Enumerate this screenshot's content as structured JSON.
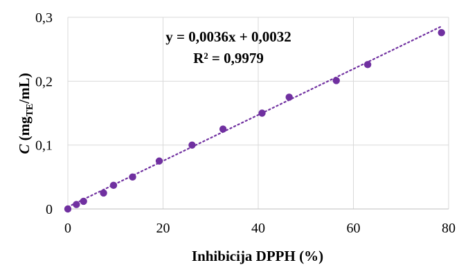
{
  "chart_data": {
    "type": "scatter",
    "x": [
      0,
      1.8,
      3.3,
      7.5,
      9.6,
      13.6,
      19.2,
      26.1,
      32.6,
      40.8,
      46.5,
      56.4,
      63.0,
      78.5
    ],
    "y": [
      0,
      0.007,
      0.012,
      0.025,
      0.037,
      0.05,
      0.075,
      0.1,
      0.125,
      0.15,
      0.175,
      0.201,
      0.226,
      0.276
    ],
    "xlim": [
      0,
      80
    ],
    "ylim": [
      0,
      0.3
    ],
    "xticks": [
      0,
      20,
      40,
      60,
      80
    ],
    "yticks": [
      0,
      0.1,
      0.2,
      0.3
    ],
    "xtick_labels": [
      "0",
      "20",
      "40",
      "60",
      "80"
    ],
    "ytick_labels": [
      "0",
      "0,1",
      "0,2",
      "0,3"
    ],
    "xlabel": "Inhibicija DPPH (%)",
    "ylabel": {
      "italic": "C",
      "pre": " (mg",
      "sub": "TE",
      "post": "/mL)"
    },
    "trendline": {
      "slope": 0.0036,
      "intercept": 0.0032,
      "style": "dotted",
      "equation": "y = 0,0036x + 0,0032",
      "r_squared": "R² = 0,9979"
    },
    "grid": true,
    "marker_color": "#7030A0",
    "line_color": "#7030A0",
    "grid_color": "#d9d9d9"
  }
}
